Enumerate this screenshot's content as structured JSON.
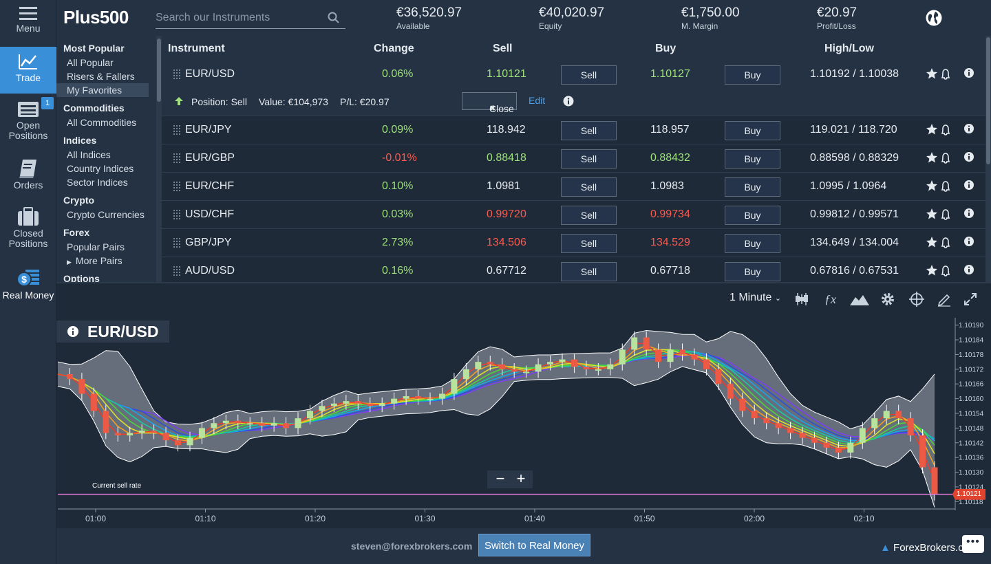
{
  "rail": {
    "menu": "Menu",
    "trade": "Trade",
    "open_positions": [
      "Open",
      "Positions"
    ],
    "open_badge": "1",
    "orders": "Orders",
    "closed_positions": [
      "Closed",
      "Positions"
    ],
    "real_money": "Real Money"
  },
  "header": {
    "logo": "Plus500",
    "search_placeholder": "Search our Instruments",
    "stats": [
      {
        "value": "€36,520.97",
        "label": "Available"
      },
      {
        "value": "€40,020.97",
        "label": "Equity"
      },
      {
        "value": "€1,750.00",
        "label": "M. Margin"
      },
      {
        "value": "€20.97",
        "label": "Profit/Loss"
      }
    ]
  },
  "categories": [
    {
      "title": "Most Popular",
      "items": [
        "All Popular",
        "Risers & Fallers",
        "My Favorites"
      ]
    },
    {
      "title": "Commodities",
      "items": [
        "All Commodities"
      ]
    },
    {
      "title": "Indices",
      "items": [
        "All Indices",
        "Country Indices",
        "Sector Indices"
      ]
    },
    {
      "title": "Crypto",
      "items": [
        "Crypto Currencies"
      ]
    },
    {
      "title": "Forex",
      "items": [
        "Popular Pairs",
        "More Pairs"
      ]
    },
    {
      "title": "Options",
      "items": []
    }
  ],
  "selected_category_item": "My Favorites",
  "table": {
    "headers": {
      "instrument": "Instrument",
      "change": "Change",
      "sell": "Sell",
      "buy": "Buy",
      "highlow": "High/Low"
    },
    "sell_label": "Sell",
    "buy_label": "Buy",
    "rows": [
      {
        "name": "EUR/USD",
        "change": "0.06%",
        "change_dir": "pos",
        "sell": "1.10121",
        "sell_dir": "pos",
        "buy": "1.10127",
        "buy_dir": "pos",
        "highlow": "1.10192 / 1.10038"
      },
      {
        "name": "EUR/JPY",
        "change": "0.09%",
        "change_dir": "pos",
        "sell": "118.942",
        "sell_dir": "neu",
        "buy": "118.957",
        "buy_dir": "neu",
        "highlow": "119.021 / 118.720"
      },
      {
        "name": "EUR/GBP",
        "change": "-0.01%",
        "change_dir": "neg",
        "sell": "0.88418",
        "sell_dir": "pos",
        "buy": "0.88432",
        "buy_dir": "pos",
        "highlow": "0.88598 / 0.88329"
      },
      {
        "name": "EUR/CHF",
        "change": "0.10%",
        "change_dir": "pos",
        "sell": "1.0981",
        "sell_dir": "neu",
        "buy": "1.0983",
        "buy_dir": "neu",
        "highlow": "1.0995 / 1.0964"
      },
      {
        "name": "USD/CHF",
        "change": "0.03%",
        "change_dir": "pos",
        "sell": "0.99720",
        "sell_dir": "neg",
        "buy": "0.99734",
        "buy_dir": "neg",
        "highlow": "0.99812 / 0.99571"
      },
      {
        "name": "GBP/JPY",
        "change": "2.73%",
        "change_dir": "pos",
        "sell": "134.506",
        "sell_dir": "neg",
        "buy": "134.529",
        "buy_dir": "neg",
        "highlow": "134.649 / 134.004"
      },
      {
        "name": "AUD/USD",
        "change": "0.16%",
        "change_dir": "pos",
        "sell": "0.67712",
        "sell_dir": "neu",
        "buy": "0.67718",
        "buy_dir": "neu",
        "highlow": "0.67816 / 0.67531"
      }
    ],
    "position": {
      "side": "Position: Sell",
      "value": "Value: €104,973",
      "pl": "P/L: €20.97",
      "close": "Close",
      "edit": "Edit"
    }
  },
  "chart": {
    "instrument": "EUR/USD",
    "timeframe": "1 Minute",
    "current_sell_rate_label": "Current sell rate",
    "current_price": "1.10121",
    "y_ticks": [
      "1.10190",
      "1.10184",
      "1.10178",
      "1.10172",
      "1.10166",
      "1.10160",
      "1.10154",
      "1.10148",
      "1.10142",
      "1.10136",
      "1.10130",
      "1.10124",
      "1.10118"
    ],
    "x_ticks": [
      "01:00",
      "01:10",
      "01:20",
      "01:30",
      "01:40",
      "01:50",
      "02:00",
      "02:10"
    ],
    "zoom_minus": "−",
    "zoom_plus": "+"
  },
  "chart_data": {
    "type": "candlestick",
    "title": "EUR/USD",
    "x_ticks": [
      "01:00",
      "01:10",
      "01:20",
      "01:30",
      "01:40",
      "01:50",
      "02:00",
      "02:10"
    ],
    "y_range": [
      1.10115,
      1.10193
    ],
    "close_series": [
      1.1017,
      1.10168,
      1.10162,
      1.10155,
      1.10146,
      1.10145,
      1.10146,
      1.10147,
      1.10146,
      1.10143,
      1.10141,
      1.10144,
      1.10148,
      1.1015,
      1.10151,
      1.1015,
      1.1015,
      1.10149,
      1.1015,
      1.10148,
      1.10152,
      1.10155,
      1.10157,
      1.10158,
      1.10159,
      1.10158,
      1.10157,
      1.10158,
      1.1016,
      1.10161,
      1.1016,
      1.1016,
      1.10162,
      1.10168,
      1.10172,
      1.10175,
      1.10174,
      1.10172,
      1.10171,
      1.10171,
      1.10174,
      1.10175,
      1.10176,
      1.10173,
      1.10172,
      1.10172,
      1.10174,
      1.1018,
      1.10185,
      1.1018,
      1.10175,
      1.1018,
      1.10178,
      1.10176,
      1.10172,
      1.10166,
      1.1016,
      1.10155,
      1.10152,
      1.1015,
      1.10148,
      1.10146,
      1.10144,
      1.10142,
      1.1014,
      1.10138,
      1.10142,
      1.10148,
      1.10152,
      1.10155,
      1.10152,
      1.10145,
      1.10132,
      1.10121
    ],
    "current_price": 1.10121,
    "overlays": [
      "Bollinger Bands",
      "Moving Average Ribbon"
    ],
    "grid": false
  },
  "footer": {
    "email": "steven@forexbrokers.com",
    "switch": "Switch to Real Money",
    "watermark": "ForexBrokers.com"
  },
  "colors": {
    "accent": "#3a8fd9",
    "positive": "#9ee07a",
    "negative": "#ff5a4f",
    "background": "#1e2a38",
    "panel": "#243243"
  }
}
